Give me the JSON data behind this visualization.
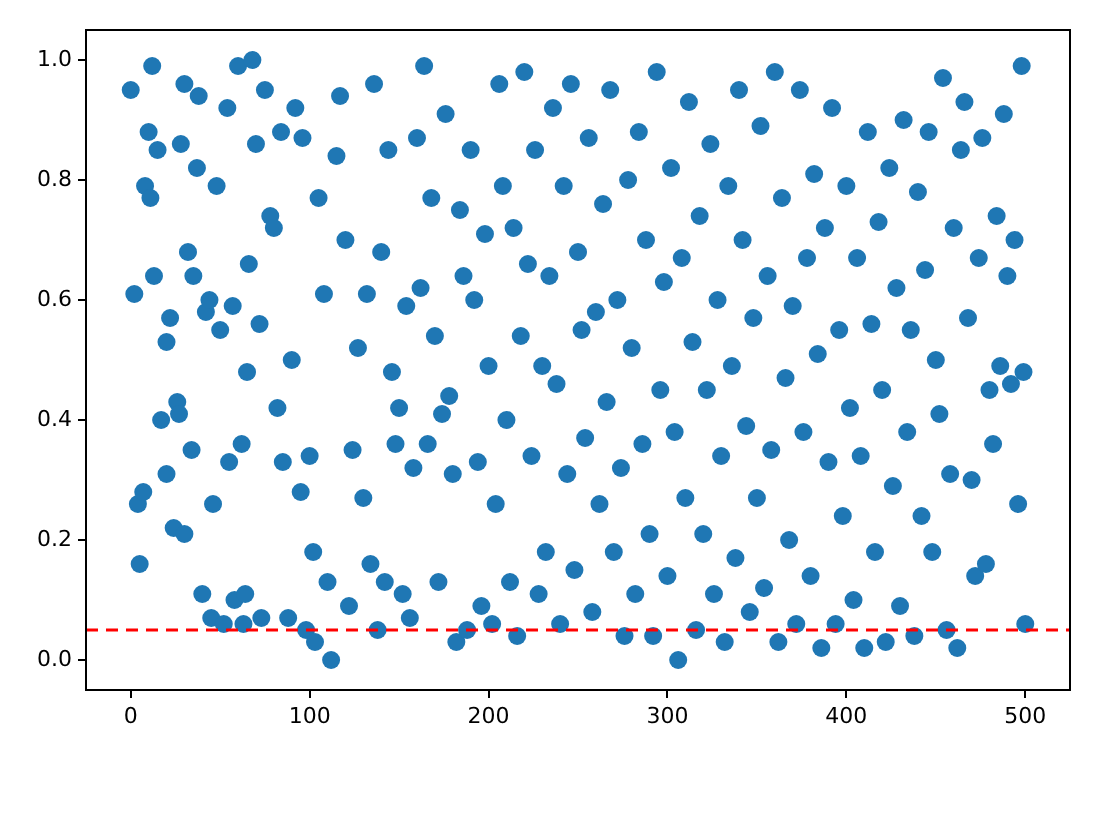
{
  "chart_data": {
    "type": "scatter",
    "marker": "circle",
    "grid": false,
    "legend": false,
    "xlim": [
      -25,
      525
    ],
    "xticks": [
      0,
      100,
      200,
      300,
      400,
      500
    ],
    "ylim": [
      -0.05,
      1.05
    ],
    "yticks": [
      {
        "value": 0,
        "label": "0.0"
      },
      {
        "value": 0.2,
        "label": "0.2"
      },
      {
        "value": 0.4,
        "label": "0.4"
      },
      {
        "value": 0.6,
        "label": "0.6"
      },
      {
        "value": 0.8,
        "label": "0.8"
      },
      {
        "value": 1,
        "label": "1.0"
      }
    ],
    "ref_lines": [
      {
        "axis": "y",
        "value": 0.05,
        "color": "#ff0000",
        "line_style": "dashed"
      }
    ],
    "series": [
      {
        "color": "#1f77b4",
        "x": [
          0,
          2,
          4,
          5,
          7,
          8,
          10,
          11,
          12,
          13,
          15,
          17,
          20,
          20,
          22,
          24,
          26,
          27,
          28,
          30,
          30,
          32,
          34,
          35,
          37,
          38,
          40,
          42,
          44,
          45,
          46,
          48,
          50,
          52,
          54,
          55,
          57,
          58,
          60,
          62,
          63,
          64,
          65,
          66,
          68,
          70,
          72,
          73,
          75,
          78,
          80,
          82,
          84,
          85,
          88,
          90,
          92,
          95,
          96,
          98,
          100,
          102,
          103,
          105,
          108,
          110,
          112,
          115,
          117,
          120,
          122,
          124,
          127,
          130,
          132,
          134,
          136,
          138,
          140,
          142,
          144,
          146,
          148,
          150,
          152,
          154,
          156,
          158,
          160,
          162,
          164,
          166,
          168,
          170,
          172,
          174,
          176,
          178,
          180,
          182,
          184,
          186,
          188,
          190,
          192,
          194,
          196,
          198,
          200,
          202,
          204,
          206,
          208,
          210,
          212,
          214,
          216,
          218,
          220,
          222,
          224,
          226,
          228,
          230,
          232,
          234,
          236,
          238,
          240,
          242,
          244,
          246,
          248,
          250,
          252,
          254,
          256,
          258,
          260,
          262,
          264,
          266,
          268,
          270,
          272,
          274,
          276,
          278,
          280,
          282,
          284,
          286,
          288,
          290,
          292,
          294,
          296,
          298,
          300,
          302,
          304,
          306,
          308,
          310,
          312,
          314,
          316,
          318,
          320,
          322,
          324,
          326,
          328,
          330,
          332,
          334,
          336,
          338,
          340,
          342,
          344,
          346,
          348,
          350,
          352,
          354,
          356,
          358,
          360,
          362,
          364,
          366,
          368,
          370,
          372,
          374,
          376,
          378,
          380,
          382,
          384,
          386,
          388,
          390,
          392,
          394,
          396,
          398,
          400,
          402,
          404,
          406,
          408,
          410,
          412,
          414,
          416,
          418,
          420,
          422,
          424,
          426,
          428,
          430,
          432,
          434,
          436,
          438,
          440,
          442,
          444,
          446,
          448,
          450,
          452,
          454,
          456,
          458,
          460,
          462,
          464,
          466,
          468,
          470,
          472,
          474,
          476,
          478,
          480,
          482,
          484,
          486,
          488,
          490,
          492,
          494,
          496,
          498,
          500,
          499
        ],
        "values": [
          0.95,
          0.61,
          0.26,
          0.16,
          0.28,
          0.79,
          0.88,
          0.77,
          0.99,
          0.64,
          0.85,
          0.4,
          0.53,
          0.31,
          0.57,
          0.22,
          0.43,
          0.41,
          0.86,
          0.96,
          0.21,
          0.68,
          0.35,
          0.64,
          0.82,
          0.94,
          0.11,
          0.58,
          0.6,
          0.07,
          0.26,
          0.79,
          0.55,
          0.06,
          0.92,
          0.33,
          0.59,
          0.1,
          0.99,
          0.36,
          0.06,
          0.11,
          0.48,
          0.66,
          1.0,
          0.86,
          0.56,
          0.07,
          0.95,
          0.74,
          0.72,
          0.42,
          0.88,
          0.33,
          0.07,
          0.5,
          0.92,
          0.28,
          0.87,
          0.05,
          0.34,
          0.18,
          0.03,
          0.77,
          0.61,
          0.13,
          0.0,
          0.84,
          0.94,
          0.7,
          0.09,
          0.35,
          0.52,
          0.27,
          0.61,
          0.16,
          0.96,
          0.05,
          0.68,
          0.13,
          0.85,
          0.48,
          0.36,
          0.42,
          0.11,
          0.59,
          0.07,
          0.32,
          0.87,
          0.62,
          0.99,
          0.36,
          0.77,
          0.54,
          0.13,
          0.41,
          0.91,
          0.44,
          0.31,
          0.03,
          0.75,
          0.64,
          0.05,
          0.85,
          0.6,
          0.33,
          0.09,
          0.71,
          0.49,
          0.06,
          0.26,
          0.96,
          0.79,
          0.4,
          0.13,
          0.72,
          0.04,
          0.54,
          0.98,
          0.66,
          0.34,
          0.85,
          0.11,
          0.49,
          0.18,
          0.64,
          0.92,
          0.46,
          0.06,
          0.79,
          0.31,
          0.96,
          0.15,
          0.68,
          0.55,
          0.37,
          0.87,
          0.08,
          0.58,
          0.26,
          0.76,
          0.43,
          0.95,
          0.18,
          0.6,
          0.32,
          0.04,
          0.8,
          0.52,
          0.11,
          0.88,
          0.36,
          0.7,
          0.21,
          0.04,
          0.98,
          0.45,
          0.63,
          0.14,
          0.82,
          0.38,
          0.0,
          0.67,
          0.27,
          0.93,
          0.53,
          0.05,
          0.74,
          0.21,
          0.45,
          0.86,
          0.11,
          0.6,
          0.34,
          0.03,
          0.79,
          0.49,
          0.17,
          0.95,
          0.7,
          0.39,
          0.08,
          0.57,
          0.27,
          0.89,
          0.12,
          0.64,
          0.35,
          0.98,
          0.03,
          0.77,
          0.47,
          0.2,
          0.59,
          0.06,
          0.95,
          0.38,
          0.67,
          0.14,
          0.81,
          0.51,
          0.02,
          0.72,
          0.33,
          0.92,
          0.06,
          0.55,
          0.24,
          0.79,
          0.42,
          0.1,
          0.67,
          0.34,
          0.02,
          0.88,
          0.56,
          0.18,
          0.73,
          0.45,
          0.03,
          0.82,
          0.29,
          0.62,
          0.09,
          0.9,
          0.38,
          0.55,
          0.04,
          0.78,
          0.24,
          0.65,
          0.88,
          0.18,
          0.5,
          0.41,
          0.97,
          0.05,
          0.31,
          0.72,
          0.02,
          0.85,
          0.93,
          0.57,
          0.3,
          0.14,
          0.67,
          0.87,
          0.16,
          0.45,
          0.36,
          0.74,
          0.49,
          0.91,
          0.64,
          0.46,
          0.7,
          0.26,
          0.99,
          0.06,
          0.48
        ]
      }
    ]
  }
}
